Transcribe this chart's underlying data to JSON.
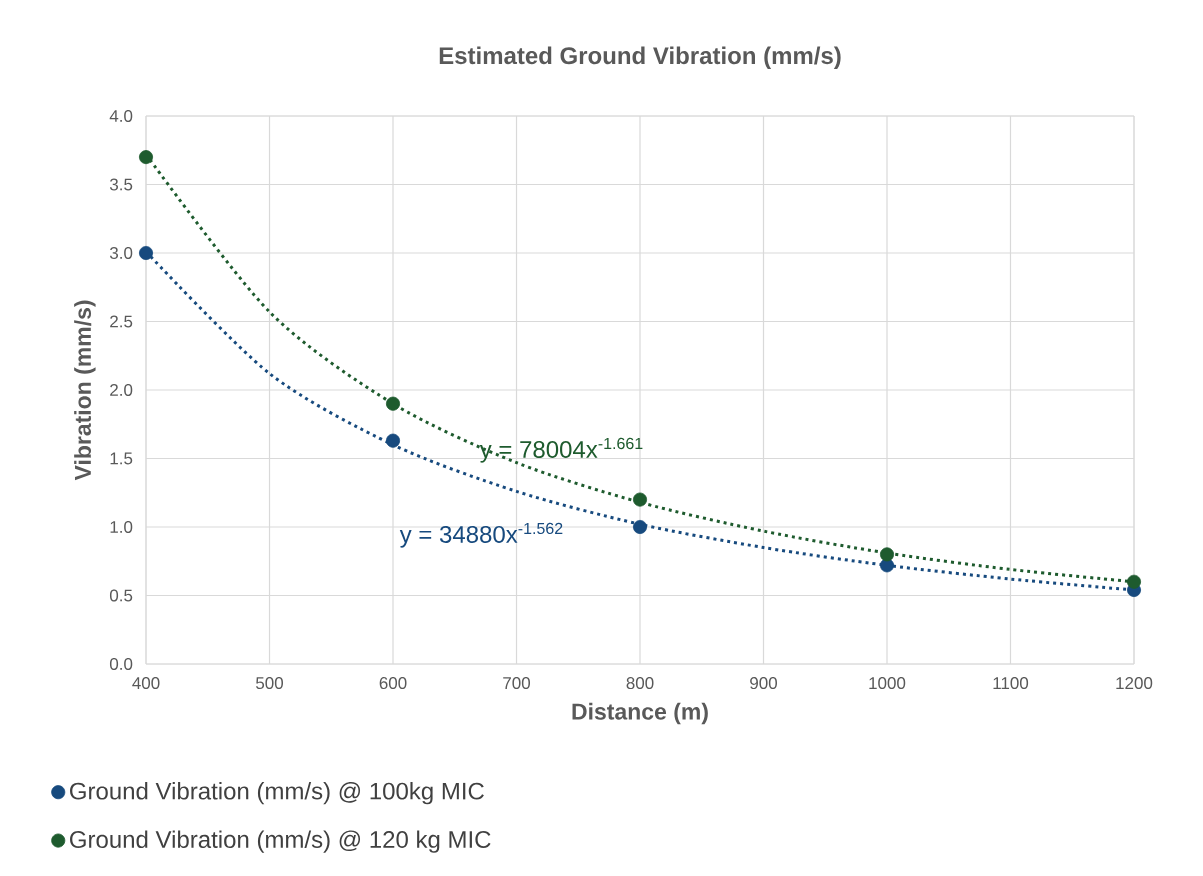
{
  "chart_data": {
    "type": "scatter",
    "title": "Estimated Ground Vibration (mm/s)",
    "xlabel": "Distance (m)",
    "ylabel": "Vibration (mm/s)",
    "x": [
      400,
      600,
      800,
      1000,
      1200
    ],
    "series": [
      {
        "name": "Ground Vibration (mm/s) @ 100kg MIC",
        "marker": "circle",
        "color": "#174a7e",
        "values": [
          3.0,
          1.63,
          1.0,
          0.72,
          0.54
        ]
      },
      {
        "name": "Ground Vibration (mm/s) @ 120 kg MIC",
        "marker": "circle",
        "color": "#1e5b2e",
        "values": [
          3.7,
          1.9,
          1.2,
          0.8,
          0.6
        ]
      },
      {
        "type": "line",
        "line_style": "dotted",
        "marker": "none",
        "color": "#174a7e",
        "x": [
          400,
          500,
          600,
          700,
          800,
          900,
          1000,
          1100,
          1200
        ],
        "values": [
          3.01,
          2.12,
          1.6,
          1.26,
          1.02,
          0.85,
          0.72,
          0.62,
          0.54
        ]
      },
      {
        "type": "line",
        "line_style": "dotted",
        "marker": "none",
        "color": "#1e5b2e",
        "x": [
          400,
          500,
          600,
          700,
          800,
          900,
          1000,
          1100,
          1200
        ],
        "values": [
          3.72,
          2.57,
          1.9,
          1.47,
          1.18,
          0.97,
          0.81,
          0.69,
          0.6
        ]
      }
    ],
    "annotations": [
      "y = 34880x$^{-1.562}$",
      "y = 78004x$^{-1.661}$"
    ],
    "xlim": [
      400,
      1200
    ],
    "xticks": [
      400,
      500,
      600,
      700,
      800,
      900,
      1000,
      1100,
      1200
    ],
    "ylim": [
      0,
      4
    ],
    "yticks": [
      {
        "value": 0,
        "label": "0.0"
      },
      {
        "value": 0.5,
        "label": "0.5"
      },
      {
        "value": 1,
        "label": "1.0"
      },
      {
        "value": 1.5,
        "label": "1.5"
      },
      {
        "value": 2,
        "label": "2.0"
      },
      {
        "value": 2.5,
        "label": "2.5"
      },
      {
        "value": 3,
        "label": "3.0"
      },
      {
        "value": 3.5,
        "label": "3.5"
      },
      {
        "value": 4,
        "label": "4.0"
      }
    ],
    "grid": true,
    "legend": "bottom"
  }
}
